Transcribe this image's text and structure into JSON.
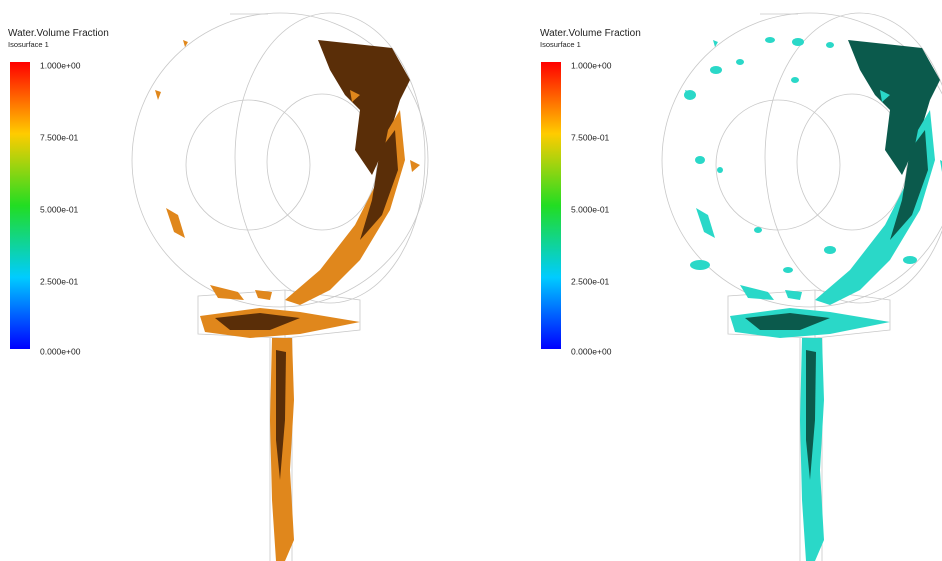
{
  "panels": [
    {
      "title": "Water.Volume Fraction",
      "subtitle": "Isosurface 1",
      "legend_labels": [
        "1.000e+00",
        "7.500e-01",
        "5.000e-01",
        "2.500e-01",
        "0.000e+00"
      ]
    },
    {
      "title": "Water.Volume Fraction",
      "subtitle": "Isosurface 1",
      "legend_labels": [
        "1.000e+00",
        "7.500e-01",
        "5.000e-01",
        "2.500e-01",
        "0.000e+00"
      ]
    }
  ]
}
